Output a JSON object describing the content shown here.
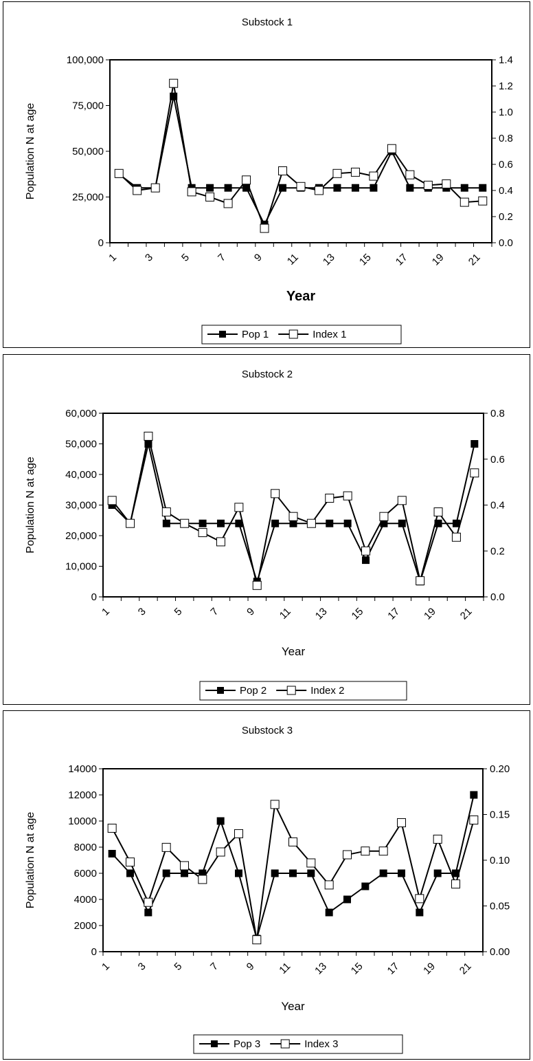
{
  "chart_data": [
    {
      "type": "line",
      "title": "Substock 1",
      "xlabel": "Year",
      "xlabel_bold": true,
      "ylabel": "Population N at age",
      "x": [
        1,
        2,
        3,
        4,
        5,
        6,
        7,
        8,
        9,
        10,
        11,
        12,
        13,
        14,
        15,
        16,
        17,
        18,
        19,
        20,
        21
      ],
      "xticks": [
        "1",
        "3",
        "5",
        "7",
        "9",
        "11",
        "13",
        "15",
        "17",
        "19",
        "21"
      ],
      "ylim": [
        0,
        100000
      ],
      "yticks": [
        "0",
        "25,000",
        "50,000",
        "75,000",
        "100,000"
      ],
      "y2lim": [
        0,
        1.4
      ],
      "y2ticks": [
        "0.0",
        "0.2",
        "0.4",
        "0.6",
        "0.8",
        "1.0",
        "1.2",
        "1.4"
      ],
      "legend_position": "bottom",
      "series": [
        {
          "name": "Pop 1",
          "axis": "left",
          "marker": "filled-square",
          "values": [
            37500,
            30000,
            30000,
            80000,
            30000,
            30000,
            30000,
            30000,
            10000,
            30000,
            30000,
            30000,
            30000,
            30000,
            30000,
            50000,
            30000,
            30000,
            30000,
            30000,
            30000
          ]
        },
        {
          "name": "Index 1",
          "axis": "right",
          "marker": "open-square",
          "values": [
            0.53,
            0.4,
            0.42,
            1.22,
            0.39,
            0.35,
            0.3,
            0.48,
            0.11,
            0.55,
            0.43,
            0.4,
            0.53,
            0.54,
            0.51,
            0.72,
            0.52,
            0.44,
            0.45,
            0.31,
            0.32
          ]
        }
      ]
    },
    {
      "type": "line",
      "title": "Substock 2",
      "xlabel": "Year",
      "xlabel_bold": false,
      "ylabel": "Population N at age",
      "x": [
        1,
        2,
        3,
        4,
        5,
        6,
        7,
        8,
        9,
        10,
        11,
        12,
        13,
        14,
        15,
        16,
        17,
        18,
        19,
        20,
        21
      ],
      "xticks": [
        "1",
        "3",
        "5",
        "7",
        "9",
        "11",
        "13",
        "15",
        "17",
        "19",
        "21"
      ],
      "ylim": [
        0,
        60000
      ],
      "yticks": [
        "0",
        "10,000",
        "20,000",
        "30,000",
        "40,000",
        "50,000",
        "60,000"
      ],
      "y2lim": [
        0,
        0.8
      ],
      "y2ticks": [
        "0.0",
        "0.2",
        "0.4",
        "0.6",
        "0.8"
      ],
      "legend_position": "bottom",
      "series": [
        {
          "name": "Pop 2",
          "axis": "left",
          "marker": "filled-square",
          "values": [
            30000,
            24000,
            50000,
            24000,
            24000,
            24000,
            24000,
            24000,
            5000,
            24000,
            24000,
            24000,
            24000,
            24000,
            12000,
            24000,
            24000,
            5000,
            24000,
            24000,
            50000
          ]
        },
        {
          "name": "Index 2",
          "axis": "right",
          "marker": "open-square",
          "values": [
            0.42,
            0.32,
            0.7,
            0.37,
            0.32,
            0.28,
            0.24,
            0.39,
            0.05,
            0.45,
            0.35,
            0.32,
            0.43,
            0.44,
            0.2,
            0.35,
            0.42,
            0.07,
            0.37,
            0.26,
            0.54
          ]
        }
      ]
    },
    {
      "type": "line",
      "title": "Substock 3",
      "xlabel": "Year",
      "xlabel_bold": false,
      "ylabel": "Population N at age",
      "x": [
        1,
        2,
        3,
        4,
        5,
        6,
        7,
        8,
        9,
        10,
        11,
        12,
        13,
        14,
        15,
        16,
        17,
        18,
        19,
        20,
        21
      ],
      "xticks": [
        "1",
        "3",
        "5",
        "7",
        "9",
        "11",
        "13",
        "15",
        "17",
        "19",
        "21"
      ],
      "ylim": [
        0,
        14000
      ],
      "yticks": [
        "0",
        "2000",
        "4000",
        "6000",
        "8000",
        "10000",
        "12000",
        "14000"
      ],
      "y2lim": [
        0,
        0.2
      ],
      "y2ticks": [
        "0.00",
        "0.05",
        "0.10",
        "0.15",
        "0.20"
      ],
      "legend_position": "bottom",
      "series": [
        {
          "name": "Pop 3",
          "axis": "left",
          "marker": "filled-square",
          "values": [
            7500,
            6000,
            3000,
            6000,
            6000,
            6000,
            10000,
            6000,
            1000,
            6000,
            6000,
            6000,
            3000,
            4000,
            5000,
            6000,
            6000,
            3000,
            6000,
            6000,
            12000
          ]
        },
        {
          "name": "Index 3",
          "axis": "right",
          "marker": "open-square",
          "values": [
            0.135,
            0.098,
            0.054,
            0.114,
            0.094,
            0.079,
            0.109,
            0.129,
            0.013,
            0.161,
            0.12,
            0.097,
            0.073,
            0.106,
            0.11,
            0.11,
            0.141,
            0.058,
            0.123,
            0.074,
            0.144
          ]
        }
      ]
    }
  ]
}
